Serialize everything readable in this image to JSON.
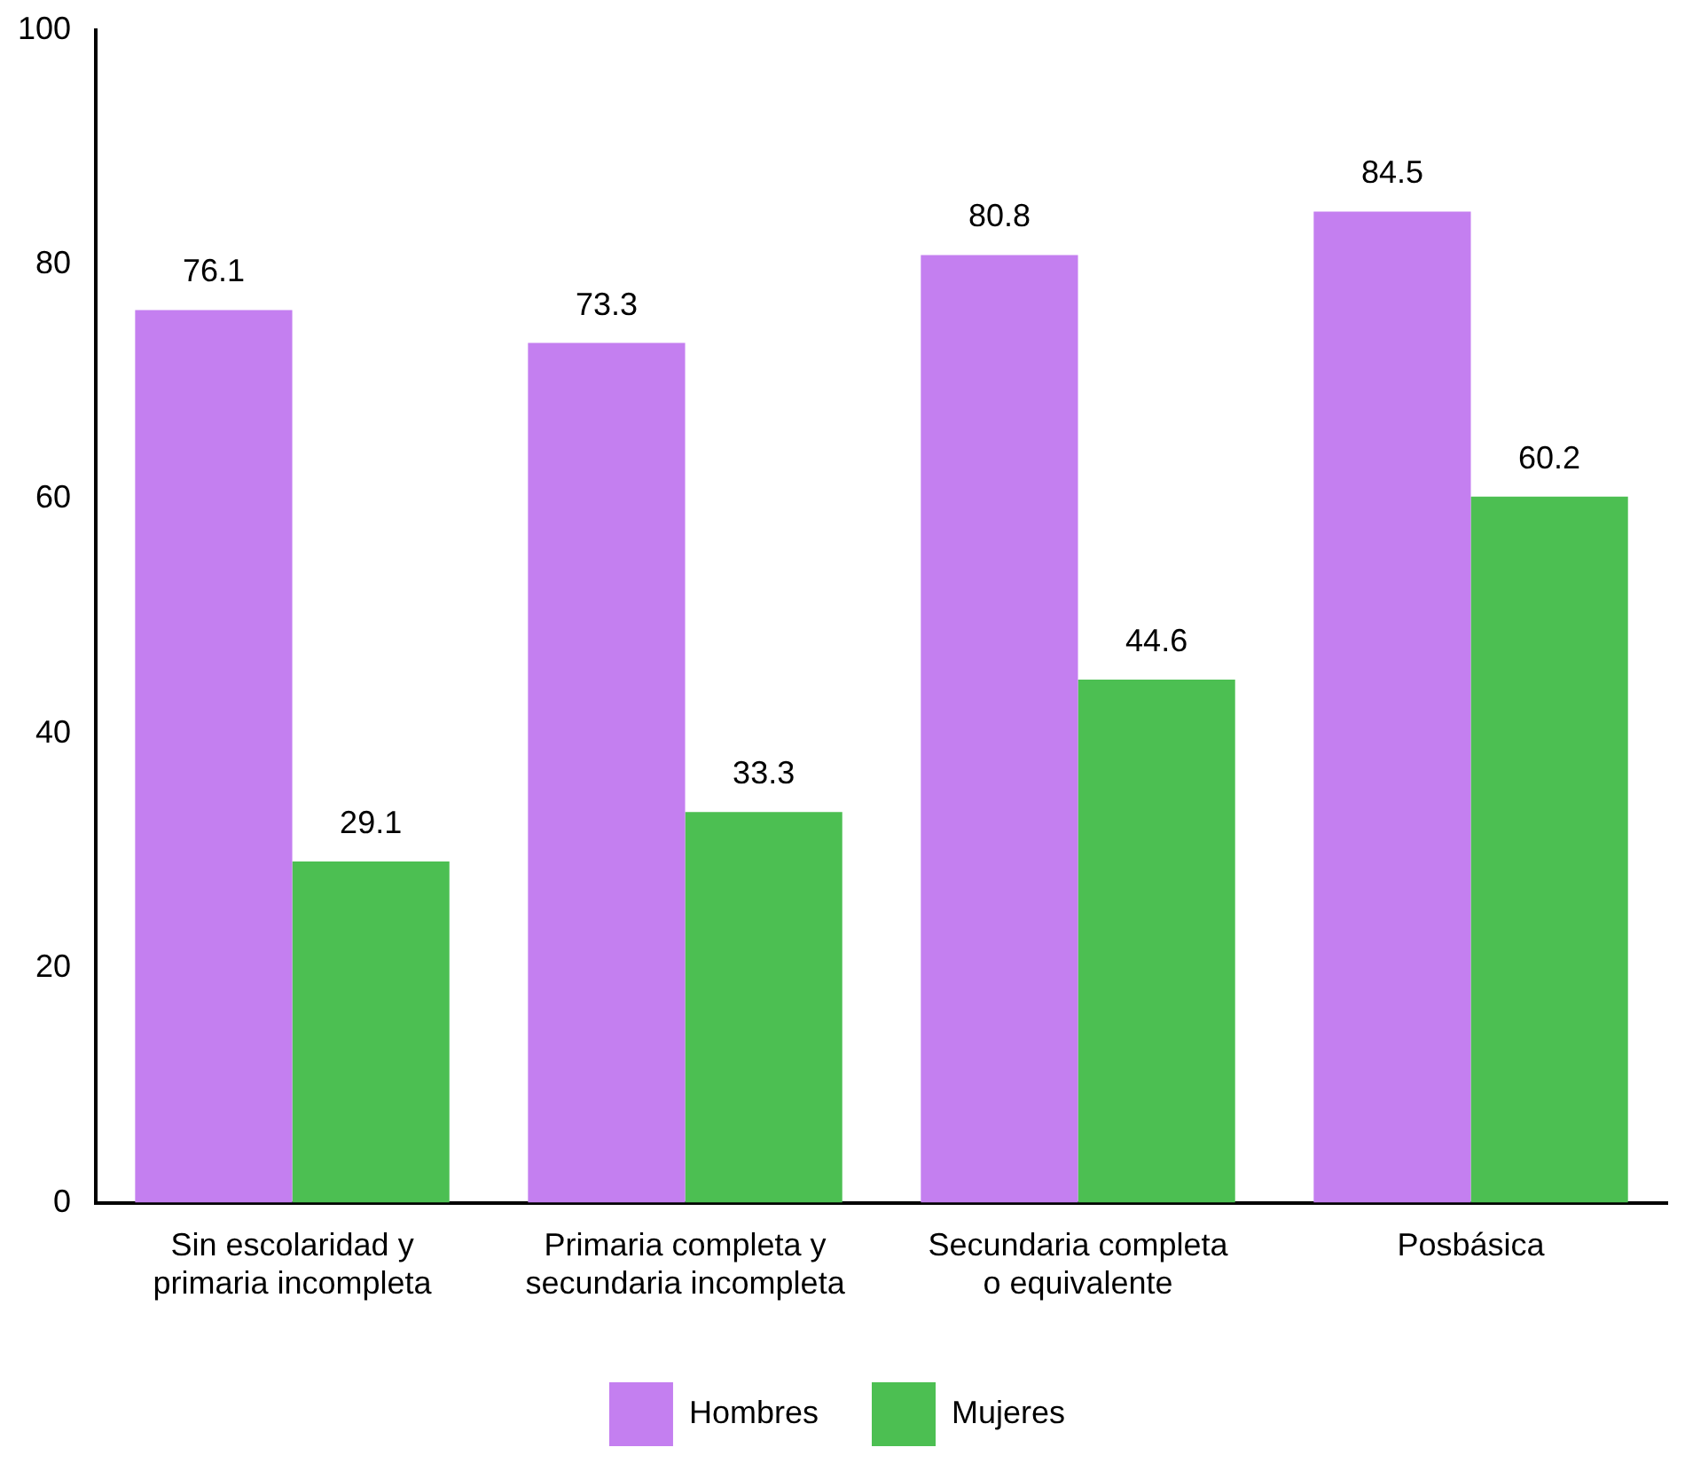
{
  "chart_data": {
    "type": "bar",
    "categories": [
      "Sin escolaridad y primaria incompleta",
      "Primaria completa y secundaria incompleta",
      "Secundaria completa o equivalente",
      "Posbásica"
    ],
    "series": [
      {
        "name": "Hombres",
        "color": "#c47ff0",
        "values": [
          76.1,
          73.3,
          80.8,
          84.5
        ]
      },
      {
        "name": "Mujeres",
        "color": "#4cbf52",
        "values": [
          29.1,
          33.3,
          44.6,
          60.2
        ]
      }
    ],
    "ylim": [
      0,
      100
    ],
    "yticks": [
      0,
      20,
      40,
      60,
      80,
      100
    ],
    "grid": false,
    "legend": "bottom",
    "data_labels": true
  }
}
